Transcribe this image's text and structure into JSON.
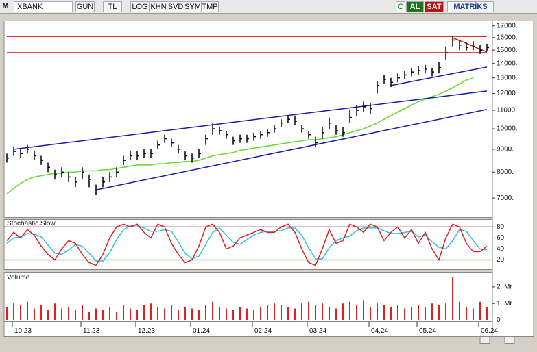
{
  "toolbar": {
    "symbol_prefix": "M",
    "symbol": "XBANK",
    "buttons": [
      "GUN",
      "TL",
      "LOG",
      "KHN",
      "SVD",
      "SYM",
      "TMP"
    ],
    "c_button": "C",
    "buy": "AL",
    "sell": "SAT",
    "brand": "MATRİKS"
  },
  "chart_data": [
    {
      "type": "ohlc",
      "log": true,
      "color": "#000000",
      "categories": [
        null,
        "10.23",
        null,
        null,
        null,
        null,
        null,
        null,
        null,
        null,
        null,
        "11.23",
        null,
        null,
        null,
        null,
        null,
        null,
        null,
        "12.23",
        null,
        null,
        null,
        null,
        null,
        null,
        null,
        "01.24",
        null,
        null,
        null,
        null,
        null,
        null,
        null,
        null,
        "02.24",
        null,
        null,
        null,
        null,
        null,
        null,
        null,
        "03.24",
        null,
        null,
        null,
        null,
        null,
        null,
        null,
        null,
        "04.24",
        null,
        null,
        null,
        null,
        null,
        null,
        "05.24",
        null,
        null,
        null,
        null,
        null,
        null,
        null,
        null,
        "06.24",
        null
      ],
      "close": [
        8600,
        8900,
        8800,
        9000,
        8700,
        8500,
        8200,
        7900,
        8000,
        7800,
        7600,
        8000,
        7700,
        7300,
        7600,
        7800,
        8000,
        8500,
        8700,
        8700,
        8800,
        8800,
        9200,
        9500,
        9300,
        9000,
        8700,
        8600,
        8800,
        9500,
        10000,
        9900,
        9700,
        9400,
        9500,
        9500,
        9600,
        9700,
        9800,
        10000,
        10300,
        10500,
        10400,
        10000,
        9700,
        9300,
        9800,
        10300,
        9900,
        9800,
        10600,
        11000,
        11200,
        11100,
        12500,
        12900,
        12700,
        13000,
        13200,
        13400,
        13500,
        13600,
        13400,
        13700,
        14800,
        15800,
        15400,
        15200,
        15300,
        15000,
        15200
      ],
      "high": [
        8800,
        9100,
        9000,
        9200,
        8900,
        8700,
        8400,
        8100,
        8200,
        8000,
        7800,
        8200,
        7900,
        7500,
        7800,
        8000,
        8200,
        8700,
        8900,
        8900,
        9000,
        9000,
        9400,
        9700,
        9500,
        9200,
        8900,
        8800,
        9000,
        9700,
        10300,
        10100,
        9900,
        9600,
        9700,
        9700,
        9800,
        9900,
        10000,
        10200,
        10500,
        10700,
        10700,
        10200,
        9900,
        9600,
        10100,
        10600,
        10200,
        10100,
        11000,
        11300,
        11500,
        11400,
        12800,
        13200,
        13000,
        13300,
        13500,
        13700,
        13800,
        13900,
        13700,
        14100,
        15300,
        16100,
        15800,
        15600,
        15700,
        15400,
        15500
      ],
      "low": [
        8400,
        8700,
        8600,
        8800,
        8500,
        8300,
        8000,
        7700,
        7800,
        7600,
        7400,
        7700,
        7400,
        7100,
        7400,
        7600,
        7800,
        8300,
        8500,
        8500,
        8600,
        8600,
        9000,
        9300,
        9100,
        8800,
        8500,
        8400,
        8600,
        9200,
        9700,
        9700,
        9500,
        9200,
        9300,
        9300,
        9400,
        9500,
        9600,
        9800,
        10100,
        10300,
        10200,
        9800,
        9500,
        9100,
        9500,
        10000,
        9700,
        9600,
        10300,
        10700,
        10900,
        10800,
        12000,
        12600,
        12400,
        12700,
        12900,
        13100,
        13200,
        13300,
        13100,
        13300,
        14300,
        15300,
        15000,
        14900,
        15000,
        14700,
        14900
      ],
      "ma": {
        "color": "#66dd33",
        "values": [
          7150,
          7350,
          7550,
          7700,
          7800,
          7850,
          7900,
          7950,
          7950,
          8000,
          8000,
          8050,
          8050,
          8050,
          8100,
          8100,
          8150,
          8200,
          8250,
          8300,
          8300,
          8300,
          8350,
          8350,
          8400,
          8400,
          8450,
          8450,
          8500,
          8600,
          8700,
          8750,
          8800,
          8850,
          8950,
          9000,
          9050,
          9100,
          9150,
          9200,
          9250,
          9300,
          9350,
          9400,
          9450,
          9450,
          9500,
          9550,
          9600,
          9700,
          9800,
          9900,
          10000,
          10150,
          10300,
          10500,
          10700,
          10900,
          11100,
          11300,
          11500,
          11650,
          11800,
          11950,
          12150,
          12350,
          12600,
          12850,
          13000,
          null,
          null
        ]
      },
      "lines": [
        {
          "color": "#1a1aa6",
          "points": [
            [
              1,
              9000
            ],
            [
              70,
              12150
            ]
          ]
        },
        {
          "color": "#1a1aa6",
          "points": [
            [
              13,
              7300
            ],
            [
              70,
              11050
            ]
          ]
        },
        {
          "color": "#1a1aa6",
          "points": [
            [
              56,
              12500
            ],
            [
              70,
              13750
            ]
          ]
        },
        {
          "color": "#d01010",
          "points": [
            [
              0,
              16100
            ],
            [
              70,
              16100
            ]
          ]
        },
        {
          "color": "#d01010",
          "points": [
            [
              0,
              14800
            ],
            [
              70,
              14800
            ]
          ]
        },
        {
          "color": "#d01010",
          "points": [
            [
              65,
              16000
            ],
            [
              70,
              14850
            ]
          ]
        }
      ],
      "ylim": [
        6400,
        17500
      ],
      "yticks": [
        {
          "value": 17000,
          "label": "17000."
        },
        {
          "value": 16000,
          "label": "16000."
        },
        {
          "value": 15000,
          "label": "15000."
        },
        {
          "value": 14000,
          "label": "14000."
        },
        {
          "value": 13000,
          "label": "13000."
        },
        {
          "value": 12000,
          "label": "12000."
        },
        {
          "value": 11000,
          "label": "11000."
        },
        {
          "value": 10000,
          "label": "10000."
        },
        {
          "value": 9000,
          "label": "9000."
        },
        {
          "value": 8000,
          "label": "8000."
        },
        {
          "value": 7000,
          "label": "7000."
        }
      ]
    },
    {
      "type": "line",
      "title": "Stochastic.Slow",
      "series": [
        {
          "color": "#e02020",
          "values": [
            55,
            70,
            60,
            75,
            65,
            45,
            30,
            20,
            40,
            55,
            50,
            30,
            15,
            10,
            30,
            60,
            80,
            85,
            80,
            85,
            70,
            60,
            85,
            80,
            50,
            30,
            15,
            20,
            45,
            80,
            85,
            70,
            40,
            45,
            60,
            65,
            70,
            75,
            70,
            70,
            80,
            85,
            70,
            40,
            15,
            10,
            40,
            75,
            50,
            55,
            85,
            80,
            70,
            85,
            80,
            55,
            70,
            80,
            60,
            75,
            50,
            70,
            40,
            20,
            60,
            85,
            80,
            50,
            35,
            35,
            45
          ]
        },
        {
          "color": "#30c0e0",
          "values": [
            50,
            60,
            62,
            68,
            67,
            62,
            47,
            32,
            30,
            38,
            48,
            45,
            32,
            18,
            18,
            33,
            57,
            75,
            82,
            83,
            78,
            72,
            72,
            75,
            72,
            53,
            32,
            22,
            27,
            48,
            70,
            78,
            65,
            52,
            48,
            57,
            65,
            70,
            72,
            72,
            73,
            78,
            78,
            65,
            42,
            22,
            22,
            42,
            55,
            60,
            63,
            73,
            78,
            78,
            78,
            73,
            68,
            68,
            70,
            72,
            62,
            65,
            53,
            43,
            40,
            55,
            75,
            72,
            55,
            40,
            38
          ]
        }
      ],
      "hlines": [
        {
          "value": 80,
          "color": "#800000"
        },
        {
          "value": 20,
          "color": "#008000"
        }
      ],
      "ylim": [
        7.5,
        91
      ],
      "yticks": [
        {
          "value": 80,
          "label": "80."
        },
        {
          "value": 60,
          "label": "60."
        },
        {
          "value": 40,
          "label": "40."
        },
        {
          "value": 20,
          "label": "20."
        }
      ]
    },
    {
      "type": "bar",
      "title": "Volume",
      "color": "#e02020",
      "values": [
        0.8,
        1.0,
        0.9,
        1.1,
        0.7,
        0.9,
        0.6,
        1.0,
        0.7,
        0.8,
        0.6,
        0.9,
        0.5,
        0.7,
        0.6,
        0.8,
        0.5,
        0.9,
        0.7,
        0.6,
        0.9,
        1.0,
        0.8,
        0.7,
        0.9,
        0.6,
        0.8,
        0.7,
        0.6,
        0.9,
        1.1,
        0.8,
        0.7,
        0.6,
        0.8,
        0.7,
        0.6,
        0.8,
        0.9,
        1.0,
        0.9,
        0.8,
        0.7,
        1.0,
        1.1,
        0.9,
        1.0,
        0.8,
        0.7,
        1.0,
        1.1,
        0.9,
        1.2,
        0.8,
        1.0,
        0.9,
        0.8,
        0.9,
        0.7,
        0.8,
        0.9,
        0.8,
        1.0,
        0.9,
        1.0,
        2.6,
        1.1,
        0.8,
        0.7,
        1.1,
        0.8
      ],
      "ylim": [
        0,
        2.8
      ],
      "yticks": [
        {
          "value": 2,
          "label": "2. Mr"
        },
        {
          "value": 1,
          "label": "1. Mr"
        },
        0
      ]
    }
  ]
}
